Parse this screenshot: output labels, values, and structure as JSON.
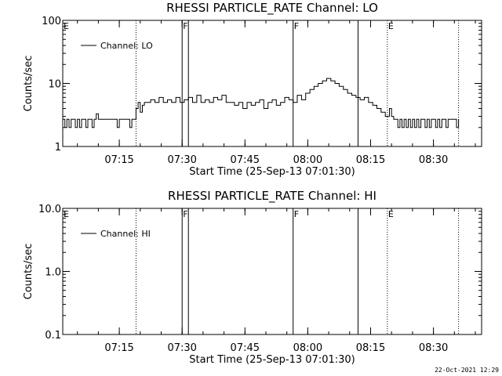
{
  "timestamp": "22-Oct-2021 12:29",
  "chart_data": [
    {
      "type": "line",
      "title": "RHESSI PARTICLE_RATE Channel: LO",
      "xlabel": "Start Time (25-Sep-13 07:01:30)",
      "ylabel": "Counts/sec",
      "yscale": "log",
      "ylim": [
        1,
        100
      ],
      "yticks": [
        1,
        10,
        100
      ],
      "ytick_labels": [
        "1",
        "10",
        "100"
      ],
      "xlim_minutes": [
        0,
        100
      ],
      "xticks_minutes": [
        13.5,
        28.5,
        43.5,
        58.5,
        73.5,
        88.5
      ],
      "xtick_labels": [
        "07:15",
        "07:30",
        "07:45",
        "08:00",
        "08:15",
        "08:30"
      ],
      "legend": "Channel: LO",
      "legend_position": "top-left",
      "events": [
        {
          "t": 17.5,
          "style": "dotted",
          "label": ""
        },
        {
          "t": 28.5,
          "style": "solid",
          "label": "F"
        },
        {
          "t": 30.0,
          "style": "solid",
          "label": ""
        },
        {
          "t": 55.0,
          "style": "solid",
          "label": "F"
        },
        {
          "t": 70.5,
          "style": "solid",
          "label": ""
        },
        {
          "t": 77.5,
          "style": "dotted",
          "label": "E"
        },
        {
          "t": 94.5,
          "style": "dotted",
          "label": ""
        }
      ],
      "corner_label": "E",
      "series": [
        {
          "x": [
            0,
            0.5,
            1,
            1.5,
            2,
            2.5,
            3,
            3.5,
            4,
            4.5,
            5,
            5.5,
            6,
            6.5,
            7,
            7.5,
            8,
            8.5,
            9,
            9.5,
            10,
            10.5,
            11,
            11.5,
            12,
            12.5,
            13,
            13.5,
            14,
            14.5,
            15,
            15.5,
            16,
            16.5,
            17,
            17.5,
            18,
            18.5,
            19,
            19.5,
            20,
            21,
            22,
            23,
            24,
            25,
            26,
            27,
            28,
            29,
            30,
            31,
            32,
            33,
            34,
            35,
            36,
            37,
            38,
            39,
            40,
            41,
            42,
            43,
            44,
            45,
            46,
            47,
            48,
            49,
            50,
            51,
            52,
            53,
            54,
            55,
            56,
            57,
            58,
            59,
            60,
            61,
            62,
            63,
            64,
            65,
            66,
            67,
            68,
            69,
            70,
            71,
            72,
            73,
            74,
            75,
            76,
            77,
            78,
            78.5,
            79,
            79.5,
            80,
            80.5,
            81,
            81.5,
            82,
            82.5,
            83,
            83.5,
            84,
            84.5,
            85,
            85.5,
            86,
            86.5,
            87,
            87.5,
            88,
            88.5,
            89,
            89.5,
            90,
            90.5,
            91,
            91.5,
            92,
            92.5,
            93,
            93.5,
            94,
            94.5
          ],
          "y": [
            2.7,
            2.0,
            2.7,
            2.0,
            2.7,
            2.7,
            2.0,
            2.7,
            2.0,
            2.7,
            2.7,
            2.0,
            2.7,
            2.7,
            2.0,
            2.7,
            3.3,
            2.7,
            2.7,
            2.7,
            2.7,
            2.7,
            2.7,
            2.7,
            2.7,
            2.7,
            2.0,
            2.7,
            2.7,
            2.7,
            2.7,
            2.7,
            2.0,
            2.7,
            2.7,
            4.0,
            5.0,
            3.5,
            4.5,
            5.0,
            5.0,
            5.5,
            5.0,
            6.0,
            5.0,
            5.5,
            5.0,
            6.0,
            5.0,
            5.5,
            6.0,
            5.0,
            6.5,
            5.0,
            5.5,
            5.0,
            6.0,
            5.5,
            6.5,
            5.0,
            5.0,
            4.5,
            5.0,
            4.0,
            5.0,
            4.5,
            5.0,
            5.5,
            4.0,
            5.0,
            5.5,
            4.5,
            5.0,
            6.0,
            5.5,
            5.0,
            6.5,
            5.5,
            7.0,
            8.0,
            9.0,
            10.0,
            11.0,
            12.0,
            11.0,
            10.0,
            9.0,
            8.0,
            7.0,
            6.5,
            6.0,
            5.5,
            6.0,
            5.0,
            4.5,
            4.0,
            3.5,
            3.0,
            4.0,
            3.0,
            2.7,
            2.7,
            2.0,
            2.7,
            2.0,
            2.7,
            2.0,
            2.7,
            2.0,
            2.7,
            2.0,
            2.7,
            2.0,
            2.7,
            2.7,
            2.0,
            2.7,
            2.0,
            2.7,
            2.7,
            2.0,
            2.7,
            2.0,
            2.7,
            2.7,
            2.0,
            2.7,
            2.7,
            2.7,
            2.7,
            2.0,
            2.7
          ]
        }
      ]
    },
    {
      "type": "line",
      "title": "RHESSI PARTICLE_RATE Channel: HI",
      "xlabel": "Start Time (25-Sep-13 07:01:30)",
      "ylabel": "Counts/sec",
      "yscale": "log",
      "ylim": [
        0.1,
        10
      ],
      "yticks": [
        0.1,
        1,
        10
      ],
      "ytick_labels": [
        "0.1",
        "1.0",
        "10.0"
      ],
      "xlim_minutes": [
        0,
        100
      ],
      "xticks_minutes": [
        13.5,
        28.5,
        43.5,
        58.5,
        73.5,
        88.5
      ],
      "xtick_labels": [
        "07:15",
        "07:30",
        "07:45",
        "08:00",
        "08:15",
        "08:30"
      ],
      "legend": "Channel: HI",
      "legend_position": "top-left",
      "events": [
        {
          "t": 17.5,
          "style": "dotted",
          "label": ""
        },
        {
          "t": 28.5,
          "style": "solid",
          "label": "F"
        },
        {
          "t": 30.0,
          "style": "solid",
          "label": ""
        },
        {
          "t": 55.0,
          "style": "solid",
          "label": "F"
        },
        {
          "t": 70.5,
          "style": "solid",
          "label": ""
        },
        {
          "t": 77.5,
          "style": "dotted",
          "label": "E"
        },
        {
          "t": 94.5,
          "style": "dotted",
          "label": ""
        }
      ],
      "corner_label": "E",
      "series": [
        {
          "x": [],
          "y": []
        }
      ]
    }
  ]
}
